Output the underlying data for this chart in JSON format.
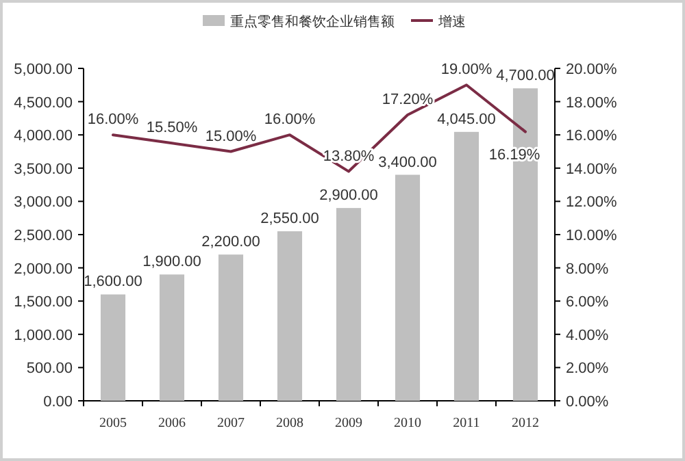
{
  "chart_data": {
    "type": "bar",
    "categories": [
      "2005",
      "2006",
      "2007",
      "2008",
      "2009",
      "2010",
      "2011",
      "2012"
    ],
    "series": [
      {
        "name": "重点零售和餐饮企业销售额",
        "color": "#bfbfbf",
        "values": [
          1600,
          1900,
          2200,
          2550,
          2900,
          3400,
          4045,
          4700
        ],
        "value_labels": [
          "1,600.00",
          "1,900.00",
          "2,200.00",
          "2,550.00",
          "2,900.00",
          "3,400.00",
          "4,045.00",
          "4,700.00"
        ]
      },
      {
        "name": "增速",
        "type": "line",
        "axis": "y2",
        "color": "#7b2c45",
        "values": [
          16.0,
          15.5,
          15.0,
          16.0,
          13.8,
          17.2,
          19.0,
          16.19
        ],
        "value_labels": [
          "16.00%",
          "15.50%",
          "15.00%",
          "16.00%",
          "13.80%",
          "17.20%",
          "19.00%",
          "16.19%"
        ]
      }
    ],
    "ylim": [
      0,
      5000
    ],
    "yticks": [
      {
        "value": 0,
        "label": "0.00"
      },
      {
        "value": 500,
        "label": "500.00"
      },
      {
        "value": 1000,
        "label": "1,000.00"
      },
      {
        "value": 1500,
        "label": "1,500.00"
      },
      {
        "value": 2000,
        "label": "2,000.00"
      },
      {
        "value": 2500,
        "label": "2,500.00"
      },
      {
        "value": 3000,
        "label": "3,000.00"
      },
      {
        "value": 3500,
        "label": "3,500.00"
      },
      {
        "value": 4000,
        "label": "4,000.00"
      },
      {
        "value": 4500,
        "label": "4,500.00"
      },
      {
        "value": 5000,
        "label": "5,000.00"
      }
    ],
    "y2lim": [
      0,
      20
    ],
    "y2ticks": [
      {
        "value": 0,
        "label": "0.00%"
      },
      {
        "value": 2,
        "label": "2.00%"
      },
      {
        "value": 4,
        "label": "4.00%"
      },
      {
        "value": 6,
        "label": "6.00%"
      },
      {
        "value": 8,
        "label": "8.00%"
      },
      {
        "value": 10,
        "label": "10.00%"
      },
      {
        "value": 12,
        "label": "12.00%"
      },
      {
        "value": 14,
        "label": "14.00%"
      },
      {
        "value": 16,
        "label": "16.00%"
      },
      {
        "value": 18,
        "label": "18.00%"
      },
      {
        "value": 20,
        "label": "20.00%"
      }
    ],
    "legend": "top"
  }
}
